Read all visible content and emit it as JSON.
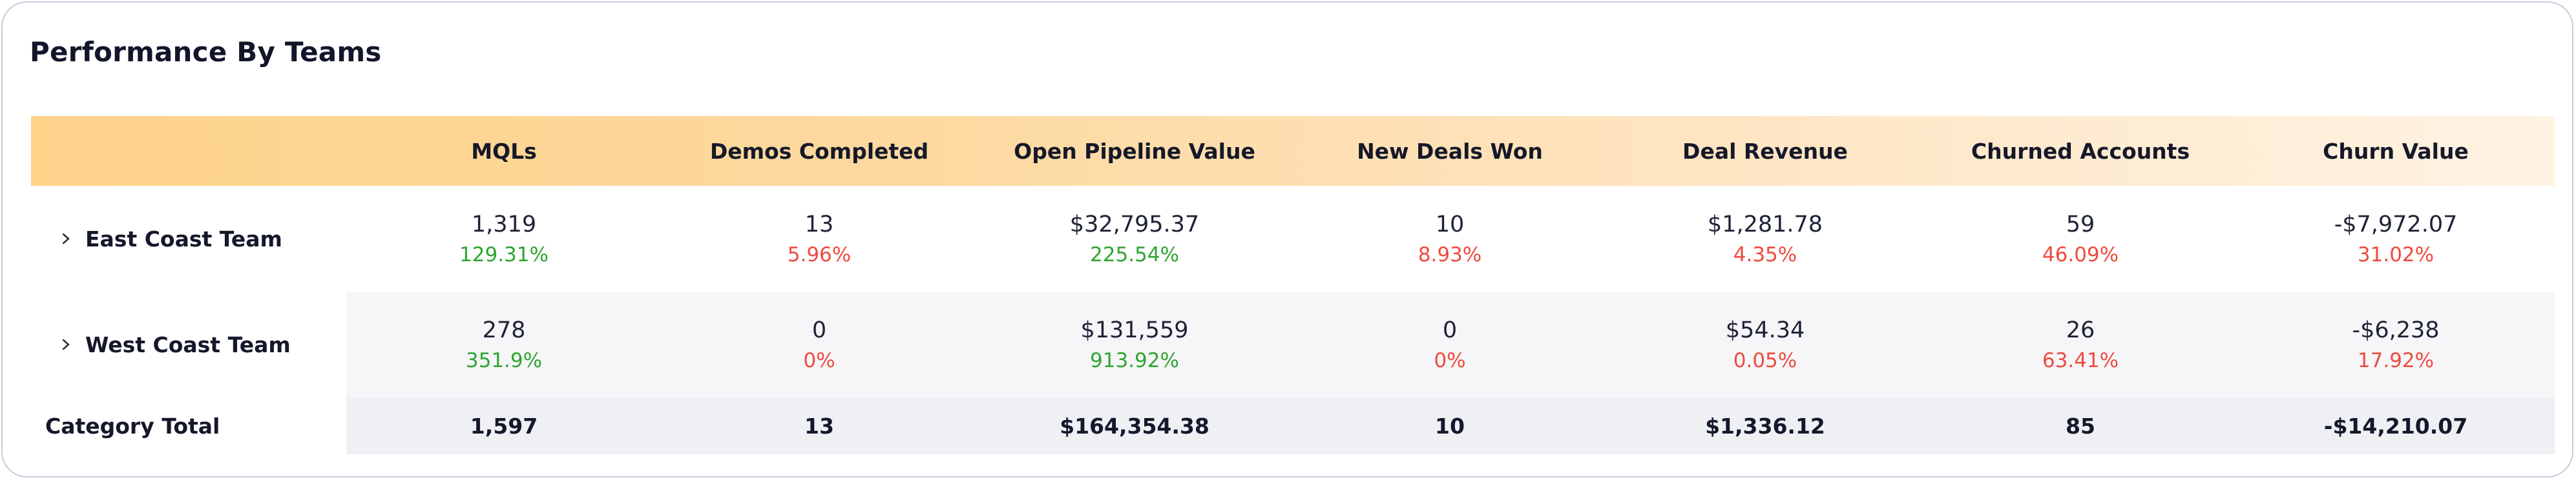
{
  "panel": {
    "title": "Performance By Teams"
  },
  "table": {
    "columns": [
      "MQLs",
      "Demos Completed",
      "Open Pipeline Value",
      "New Deals Won",
      "Deal Revenue",
      "Churned Accounts",
      "Churn Value"
    ],
    "rows": [
      {
        "team": "East Coast Team",
        "cells": [
          {
            "value": "1,319",
            "change": "129.31%",
            "trend": "up"
          },
          {
            "value": "13",
            "change": "5.96%",
            "trend": "down"
          },
          {
            "value": "$32,795.37",
            "change": "225.54%",
            "trend": "up"
          },
          {
            "value": "10",
            "change": "8.93%",
            "trend": "down"
          },
          {
            "value": "$1,281.78",
            "change": "4.35%",
            "trend": "down"
          },
          {
            "value": "59",
            "change": "46.09%",
            "trend": "down"
          },
          {
            "value": "-$7,972.07",
            "change": "31.02%",
            "trend": "down"
          }
        ]
      },
      {
        "team": "West Coast Team",
        "cells": [
          {
            "value": "278",
            "change": "351.9%",
            "trend": "up"
          },
          {
            "value": "0",
            "change": "0%",
            "trend": "down"
          },
          {
            "value": "$131,559",
            "change": "913.92%",
            "trend": "up"
          },
          {
            "value": "0",
            "change": "0%",
            "trend": "down"
          },
          {
            "value": "$54.34",
            "change": "0.05%",
            "trend": "down"
          },
          {
            "value": "26",
            "change": "63.41%",
            "trend": "down"
          },
          {
            "value": "-$6,238",
            "change": "17.92%",
            "trend": "down"
          }
        ]
      }
    ],
    "total": {
      "label": "Category Total",
      "values": [
        "1,597",
        "13",
        "$164,354.38",
        "10",
        "$1,336.12",
        "85",
        "-$14,210.07"
      ]
    }
  },
  "colors": {
    "up": "#2fa52f",
    "down": "#ee4b3d",
    "header_gradient_start": "#fdd289",
    "header_gradient_end": "#fff3e4"
  },
  "icons": {
    "expand": "chevron-right-icon"
  }
}
